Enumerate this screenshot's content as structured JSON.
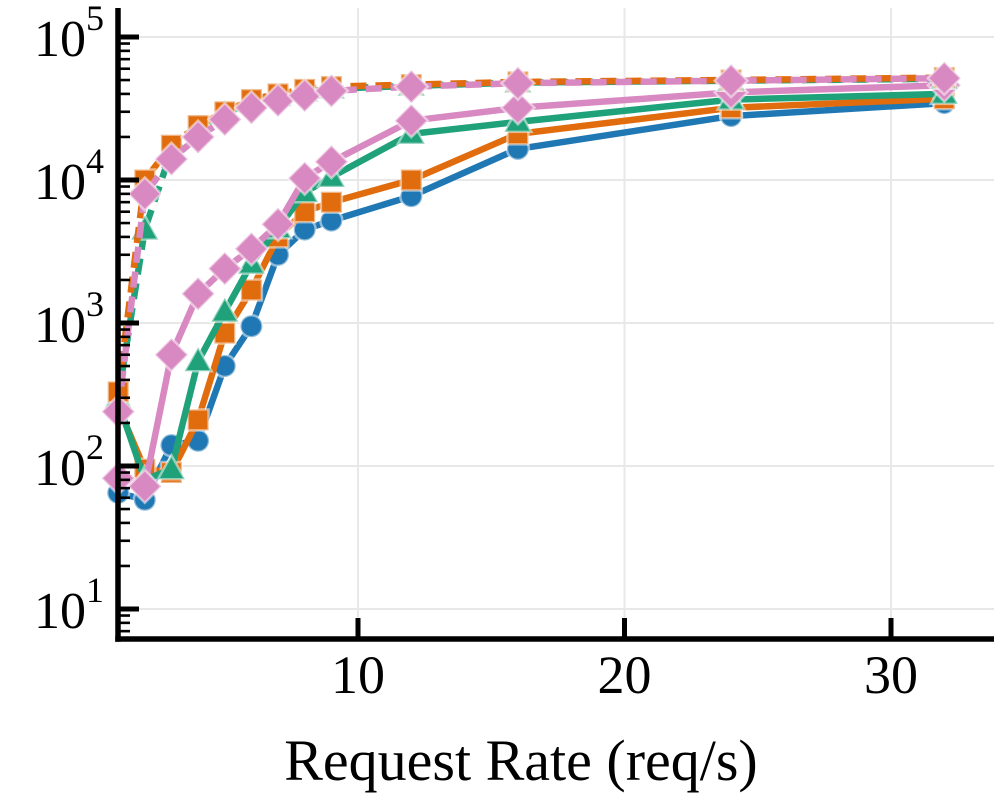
{
  "figure": {
    "background": "#ffffff",
    "axis_color": "#000000",
    "grid_color": "#e8e8e8",
    "grid": "major-only"
  },
  "chart_data": {
    "type": "line",
    "title": "",
    "xlabel": "Request Rate (req/s)",
    "ylabel": "",
    "x_scale": "linear",
    "y_scale": "log",
    "xlim": [
      1,
      33.9
    ],
    "ylim": [
      6,
      160000
    ],
    "x_ticks": [
      10,
      20,
      30
    ],
    "y_tick_exponents": [
      5,
      4,
      3,
      2,
      1
    ],
    "grid": true,
    "legend_position": "none",
    "x": [
      1,
      2,
      3,
      4,
      5,
      6,
      7,
      8,
      9,
      12,
      16,
      24,
      32
    ],
    "series": [
      {
        "name": "solid-blue-circle",
        "marker": "circle",
        "line_style": "solid",
        "color": "#1f77b4",
        "values": [
          65,
          58,
          140,
          150,
          500,
          950,
          3000,
          4500,
          5200,
          7700,
          16500,
          28000,
          34500
        ]
      },
      {
        "name": "solid-orange-square",
        "marker": "square",
        "line_style": "solid",
        "color": "#e06c0d",
        "values": [
          260,
          95,
          90,
          210,
          850,
          1700,
          4000,
          6000,
          7000,
          10000,
          21000,
          32000,
          37000
        ]
      },
      {
        "name": "solid-green-triangle",
        "marker": "triangle",
        "line_style": "solid",
        "color": "#1fa179",
        "values": [
          280,
          80,
          95,
          540,
          1200,
          2600,
          4600,
          8200,
          10500,
          21000,
          25500,
          36500,
          40000
        ]
      },
      {
        "name": "solid-pink-diamond",
        "marker": "diamond",
        "line_style": "solid",
        "color": "#d989c1",
        "values": [
          82,
          72,
          600,
          1600,
          2400,
          3300,
          4900,
          10300,
          13400,
          26000,
          32000,
          41000,
          46000
        ]
      },
      {
        "name": "dashed-green-triangle",
        "marker": "triangle",
        "line_style": "dashed",
        "color": "#1fa179",
        "values": [
          300,
          4500,
          16000,
          23000,
          29000,
          35000,
          38500,
          41500,
          43500,
          45500,
          48000,
          49500,
          51000
        ]
      },
      {
        "name": "dashed-orange-square",
        "marker": "square",
        "line_style": "dashed",
        "color": "#e06c0d",
        "values": [
          330,
          10000,
          17500,
          24000,
          30000,
          36500,
          40000,
          43000,
          45000,
          46500,
          48500,
          50000,
          52000
        ]
      },
      {
        "name": "dashed-pink-diamond",
        "marker": "diamond",
        "line_style": "dashed",
        "color": "#d989c1",
        "values": [
          240,
          8000,
          14000,
          20000,
          26500,
          32000,
          36000,
          39000,
          42000,
          45000,
          47500,
          49500,
          51500
        ]
      }
    ]
  }
}
